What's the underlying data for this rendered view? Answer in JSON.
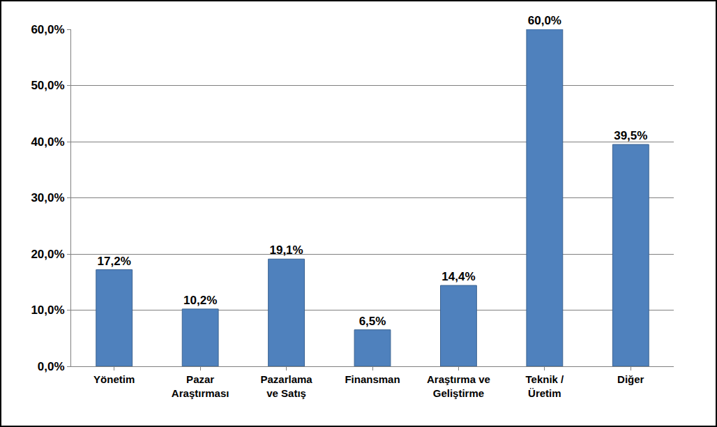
{
  "chart_data": {
    "type": "bar",
    "categories": [
      "Yönetim",
      "Pazar\nAraştırması",
      "Pazarlama\nve Satış",
      "Finansman",
      "Araştırma ve\nGeliştirme",
      "Teknik /\nÜretim",
      "Diğer"
    ],
    "values": [
      17.2,
      10.2,
      19.1,
      6.5,
      14.4,
      60.0,
      39.5
    ],
    "value_labels": [
      "17,2%",
      "10,2%",
      "19,1%",
      "6,5%",
      "14,4%",
      "60,0%",
      "39,5%"
    ],
    "data_labels": true,
    "color": "#4f81bd",
    "ylim": [
      0,
      60
    ],
    "yticks": [
      {
        "value": 0,
        "label": "0,0%"
      },
      {
        "value": 10,
        "label": "10,0%"
      },
      {
        "value": 20,
        "label": "20,0%"
      },
      {
        "value": 30,
        "label": "30,0%"
      },
      {
        "value": 40,
        "label": "40,0%"
      },
      {
        "value": 50,
        "label": "50,0%"
      },
      {
        "value": 60,
        "label": "60,0%"
      }
    ],
    "grid": true
  }
}
